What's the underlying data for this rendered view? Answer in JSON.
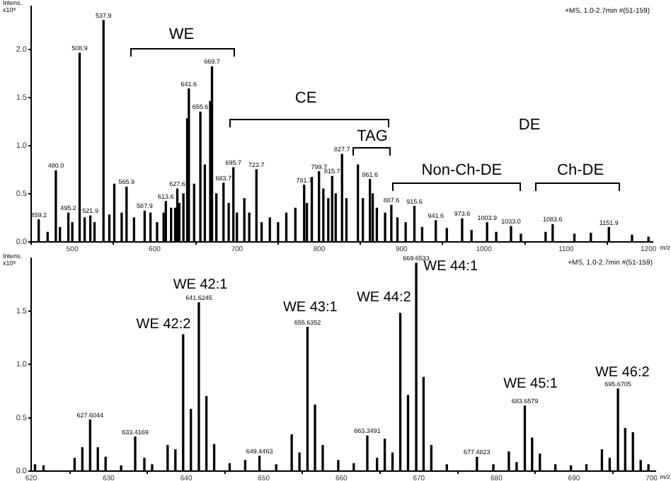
{
  "chart_data": [
    {
      "type": "bar",
      "xlabel": "m/z",
      "ylabel": "Intens. x10⁸",
      "x": [
        459.2,
        470,
        480.0,
        485,
        495.2,
        500,
        508.9,
        515,
        521.9,
        527,
        537.9,
        545,
        551,
        560,
        565.9,
        575,
        587.9,
        595,
        603,
        611,
        613.6,
        620,
        625,
        627.6,
        630,
        635,
        639.6,
        641.6,
        648,
        655.6,
        661,
        667.6,
        669.7,
        675,
        683.7,
        690,
        695.7,
        700,
        709,
        715,
        723.7,
        730,
        740,
        750,
        760,
        771,
        781.7,
        785,
        791,
        799.7,
        805,
        811,
        815.7,
        820,
        827.7,
        833,
        847,
        853,
        861.6,
        865,
        870,
        880,
        887.6,
        895,
        905,
        915.6,
        925,
        941.6,
        955,
        973.6,
        985,
        1003.9,
        1015,
        1033.0,
        1045,
        1075,
        1083.6,
        1110,
        1130,
        1151.9,
        1180,
        1200
      ],
      "values": [
        0.23,
        0.1,
        0.74,
        0.15,
        0.3,
        0.2,
        1.96,
        0.25,
        0.27,
        0.2,
        2.3,
        0.28,
        0.6,
        0.3,
        0.57,
        0.25,
        0.32,
        0.3,
        0.2,
        0.3,
        0.42,
        0.35,
        0.35,
        0.55,
        0.4,
        0.5,
        1.28,
        1.59,
        0.6,
        1.35,
        0.8,
        1.46,
        1.82,
        0.5,
        0.61,
        0.4,
        0.77,
        0.3,
        0.45,
        0.3,
        0.75,
        0.2,
        0.25,
        0.2,
        0.3,
        0.35,
        0.59,
        0.4,
        0.67,
        0.73,
        0.55,
        0.45,
        0.68,
        0.5,
        0.91,
        0.45,
        0.8,
        0.45,
        0.65,
        0.5,
        0.35,
        0.3,
        0.38,
        0.25,
        0.2,
        0.37,
        0.15,
        0.22,
        0.14,
        0.24,
        0.12,
        0.2,
        0.1,
        0.16,
        0.08,
        0.1,
        0.18,
        0.08,
        0.09,
        0.15,
        0.07,
        0.05
      ],
      "color": "#000000",
      "xlim": [
        450,
        1205
      ],
      "xticks": [
        500,
        600,
        700,
        800,
        900,
        1000,
        1100,
        1200
      ],
      "ylim": [
        0,
        2.45
      ],
      "yticks": [
        {
          "value": 0,
          "label": "0.0"
        },
        {
          "value": 0.5,
          "label": "0.5"
        },
        {
          "value": 1,
          "label": "1.0"
        },
        {
          "value": 1.5,
          "label": "1.5"
        },
        {
          "value": 2,
          "label": "2.0"
        }
      ],
      "grid": false,
      "legend": false,
      "annotations": [
        "+MS, 1.0-2.7min #(51-159)",
        "WE",
        "CE",
        "TAG",
        "Non-Ch-DE",
        "Ch-DE",
        "DE",
        {
          "text": "459.2",
          "x": 459.2,
          "y": 0.23
        },
        {
          "text": "480.0",
          "x": 480.0,
          "y": 0.74
        },
        {
          "text": "495.2",
          "x": 495.2,
          "y": 0.3
        },
        {
          "text": "508.9",
          "x": 508.9,
          "y": 1.96
        },
        {
          "text": "521.9",
          "x": 521.9,
          "y": 0.27
        },
        {
          "text": "537.9",
          "x": 537.9,
          "y": 2.3
        },
        {
          "text": "565.9",
          "x": 565.9,
          "y": 0.57
        },
        {
          "text": "587.9",
          "x": 587.9,
          "y": 0.32
        },
        {
          "text": "613.6",
          "x": 613.6,
          "y": 0.42
        },
        {
          "text": "627.6",
          "x": 627.6,
          "y": 0.55
        },
        {
          "text": "641.6",
          "x": 641.6,
          "y": 1.59
        },
        {
          "text": "655.6",
          "x": 655.6,
          "y": 1.35
        },
        {
          "text": "669.7",
          "x": 669.7,
          "y": 1.82
        },
        {
          "text": "683.7",
          "x": 683.7,
          "y": 0.61
        },
        {
          "text": "695.7",
          "x": 695.7,
          "y": 0.77
        },
        {
          "text": "723.7",
          "x": 723.7,
          "y": 0.75
        },
        {
          "text": "781.7",
          "x": 781.7,
          "y": 0.59
        },
        {
          "text": "799.7",
          "x": 799.7,
          "y": 0.73
        },
        {
          "text": "815.7",
          "x": 815.7,
          "y": 0.68
        },
        {
          "text": "827.7",
          "x": 827.7,
          "y": 0.91
        },
        {
          "text": "861.6",
          "x": 861.6,
          "y": 0.65
        },
        {
          "text": "887.6",
          "x": 887.6,
          "y": 0.38
        },
        {
          "text": "915.6",
          "x": 915.6,
          "y": 0.37
        },
        {
          "text": "941.6",
          "x": 941.6,
          "y": 0.22
        },
        {
          "text": "973.6",
          "x": 973.6,
          "y": 0.24
        },
        {
          "text": "1003.9",
          "x": 1003.9,
          "y": 0.2
        },
        {
          "text": "1033.0",
          "x": 1033.0,
          "y": 0.16
        },
        {
          "text": "1083.6",
          "x": 1083.6,
          "y": 0.18
        },
        {
          "text": "1151.9",
          "x": 1151.9,
          "y": 0.15
        }
      ]
    },
    {
      "type": "bar",
      "xlabel": "m/z",
      "ylabel": "Intens. x10⁸",
      "x": [
        620.5,
        621.6,
        625.6,
        626.6,
        627.6044,
        628.6,
        629.6,
        631.6,
        633.4169,
        634.6,
        635.6,
        637.6,
        638.6,
        639.6,
        640.6,
        641.6245,
        642.6,
        643.6,
        645.6,
        647.6,
        649.4463,
        651.6,
        653.6,
        654.6,
        655.6352,
        656.6,
        657.6,
        659.6,
        661.6,
        663.3491,
        664.6,
        665.6,
        666.6,
        667.6,
        668.6,
        669.6533,
        670.6,
        671.6,
        673.6,
        677.4823,
        679.6,
        681.6,
        682.6,
        683.6579,
        684.6,
        685.6,
        687.6,
        689.6,
        691.6,
        693.6,
        694.6,
        695.6705,
        696.6,
        697.6,
        698.6,
        699.6
      ],
      "values": [
        0.06,
        0.05,
        0.12,
        0.22,
        0.48,
        0.22,
        0.13,
        0.05,
        0.32,
        0.12,
        0.06,
        0.24,
        0.2,
        1.28,
        0.58,
        1.58,
        0.7,
        0.25,
        0.07,
        0.1,
        0.14,
        0.06,
        0.34,
        0.17,
        1.35,
        0.62,
        0.24,
        0.1,
        0.07,
        0.33,
        0.12,
        0.3,
        0.17,
        1.48,
        0.71,
        1.95,
        0.88,
        0.24,
        0.06,
        0.13,
        0.06,
        0.18,
        0.08,
        0.61,
        0.31,
        0.16,
        0.06,
        0.05,
        0.06,
        0.2,
        0.12,
        0.77,
        0.4,
        0.36,
        0.1,
        0.06
      ],
      "color": "#000000",
      "xlim": [
        620,
        700.5
      ],
      "xticks": [
        620,
        630,
        640,
        650,
        660,
        670,
        680,
        690,
        700
      ],
      "ylim": [
        0,
        2.0
      ],
      "yticks": [
        {
          "value": 0,
          "label": "0.0"
        },
        {
          "value": 0.5,
          "label": "0.5"
        },
        {
          "value": 1,
          "label": "1.0"
        },
        {
          "value": 1.5,
          "label": "1.5"
        }
      ],
      "grid": false,
      "legend": false,
      "annotations": [
        "+MS, 1.0-2.7min #(51-159)",
        "WE 42:1",
        "WE 42:2",
        "WE 43:1",
        "WE 44:2",
        "WE 44:1",
        "WE 45:1",
        "WE 46:2",
        {
          "text": "627.6044",
          "x": 627.6044,
          "y": 0.48
        },
        {
          "text": "633.4169",
          "x": 633.4169,
          "y": 0.32
        },
        {
          "text": "641.6245",
          "x": 641.6245,
          "y": 1.58
        },
        {
          "text": "649.4463",
          "x": 649.4463,
          "y": 0.14
        },
        {
          "text": "655.6352",
          "x": 655.6352,
          "y": 1.35
        },
        {
          "text": "663.3491",
          "x": 663.3491,
          "y": 0.33
        },
        {
          "text": "669.6533",
          "x": 669.6533,
          "y": 1.95
        },
        {
          "text": "677.4823",
          "x": 677.4823,
          "y": 0.13
        },
        {
          "text": "683.6579",
          "x": 683.6579,
          "y": 0.61
        },
        {
          "text": "695.6705",
          "x": 695.6705,
          "y": 0.77
        }
      ]
    }
  ]
}
